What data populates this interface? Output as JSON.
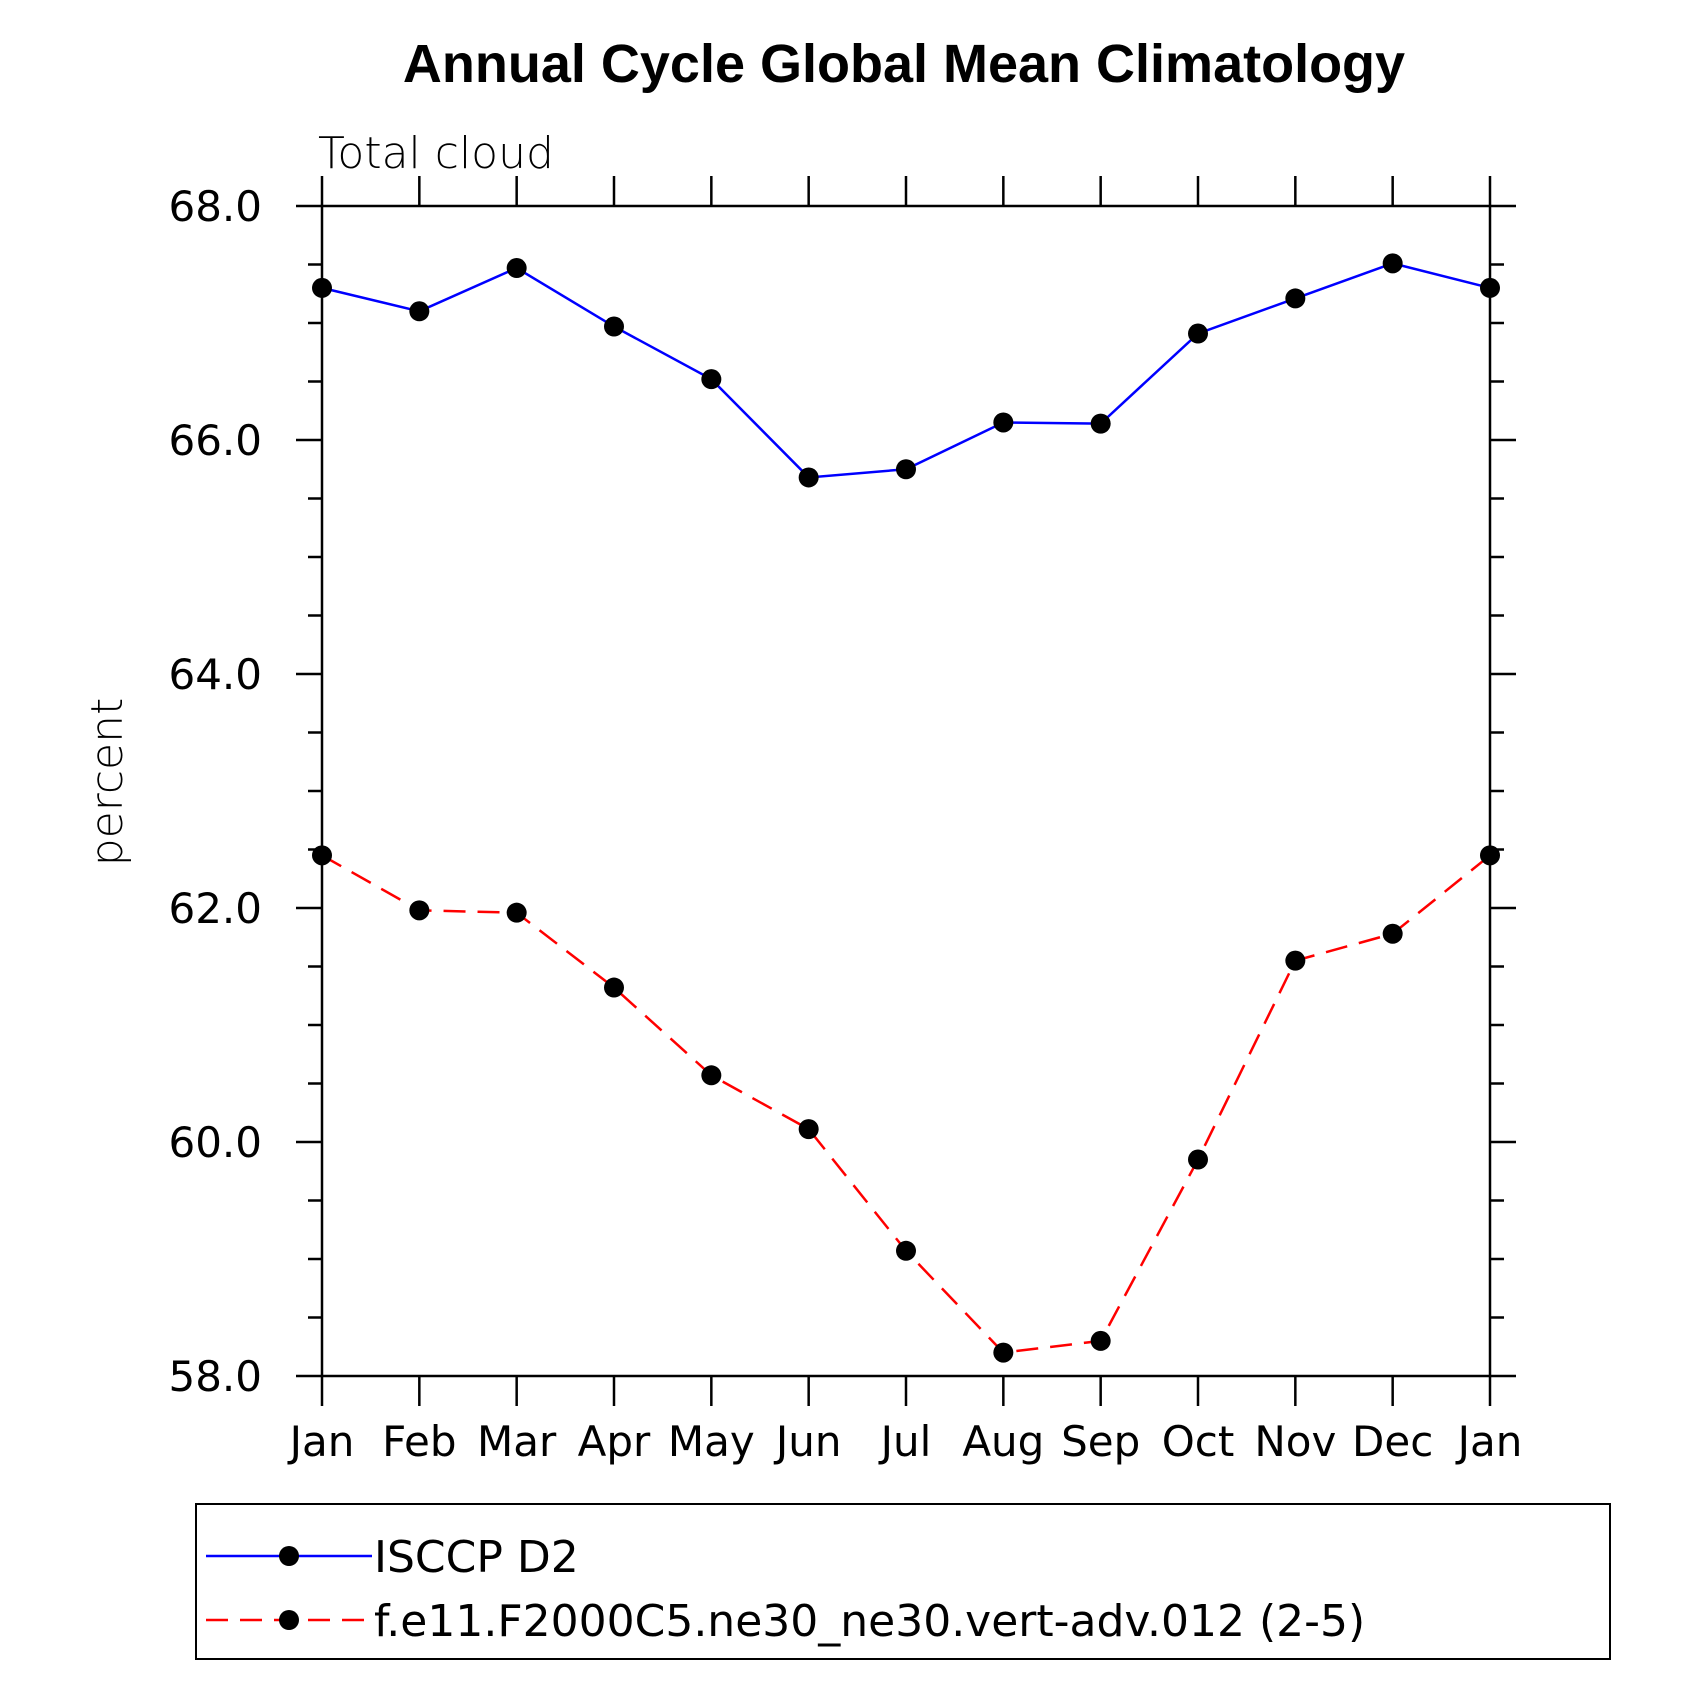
{
  "chart_data": {
    "type": "line",
    "title": "Annual Cycle Global Mean Climatology",
    "subtitle": "Total cloud",
    "ylabel": "percent",
    "xlabel": "",
    "categories": [
      "Jan",
      "Feb",
      "Mar",
      "Apr",
      "May",
      "Jun",
      "Jul",
      "Aug",
      "Sep",
      "Oct",
      "Nov",
      "Dec",
      "Jan"
    ],
    "ylim": [
      58.0,
      68.0
    ],
    "yticks": [
      "58.0",
      "60.0",
      "62.0",
      "64.0",
      "66.0",
      "68.0"
    ],
    "series": [
      {
        "name": "ISCCP D2",
        "color": "#0000ff",
        "dashed": false,
        "values": [
          67.3,
          67.1,
          67.47,
          66.97,
          66.52,
          65.68,
          65.75,
          66.15,
          66.14,
          66.91,
          67.21,
          67.51,
          67.3
        ]
      },
      {
        "name": "f.e11.F2000C5.ne30_ne30.vert-adv.012 (2-5)",
        "color": "#ff0000",
        "dashed": true,
        "values": [
          62.45,
          61.98,
          61.96,
          61.32,
          60.57,
          60.11,
          59.07,
          58.2,
          58.3,
          59.85,
          61.55,
          61.78,
          62.45
        ]
      }
    ],
    "grid": false,
    "legend_position": "bottom"
  }
}
